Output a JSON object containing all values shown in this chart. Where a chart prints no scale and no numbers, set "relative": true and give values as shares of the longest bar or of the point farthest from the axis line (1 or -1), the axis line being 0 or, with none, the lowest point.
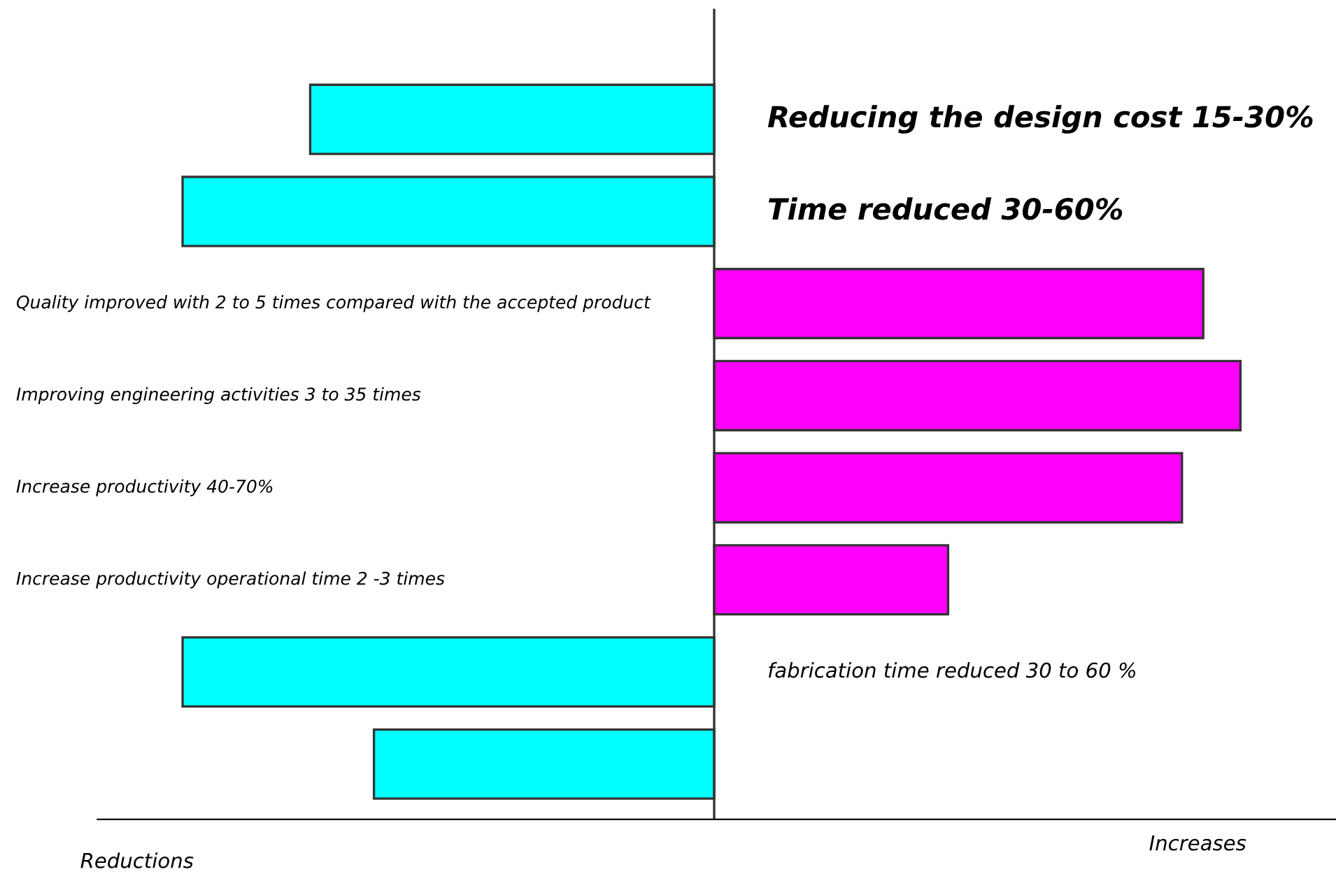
{
  "chart_data": {
    "type": "bar",
    "orientation": "horizontal",
    "relative": true,
    "categories": [
      "Reducing the design cost 15-30%",
      "Time reduced 30-60%",
      "Quality improved with 2 to 5 times compared with the accepted product",
      "Improving engineering activities 3 to 35 times",
      "Increase productivity 40-70%",
      "Increase productivity operational time 2 -3 times",
      "fabrication time reduced 30 to 60 %",
      null
    ],
    "values": [
      -0.76,
      -1.0,
      0.92,
      0.99,
      0.88,
      0.44,
      -1.0,
      -0.64
    ],
    "colors": [
      "#00ffff",
      "#00ffff",
      "#ff00ff",
      "#ff00ff",
      "#ff00ff",
      "#ff00ff",
      "#00ffff",
      "#00ffff"
    ],
    "annotations": [
      "Reductions",
      "Increases"
    ]
  }
}
